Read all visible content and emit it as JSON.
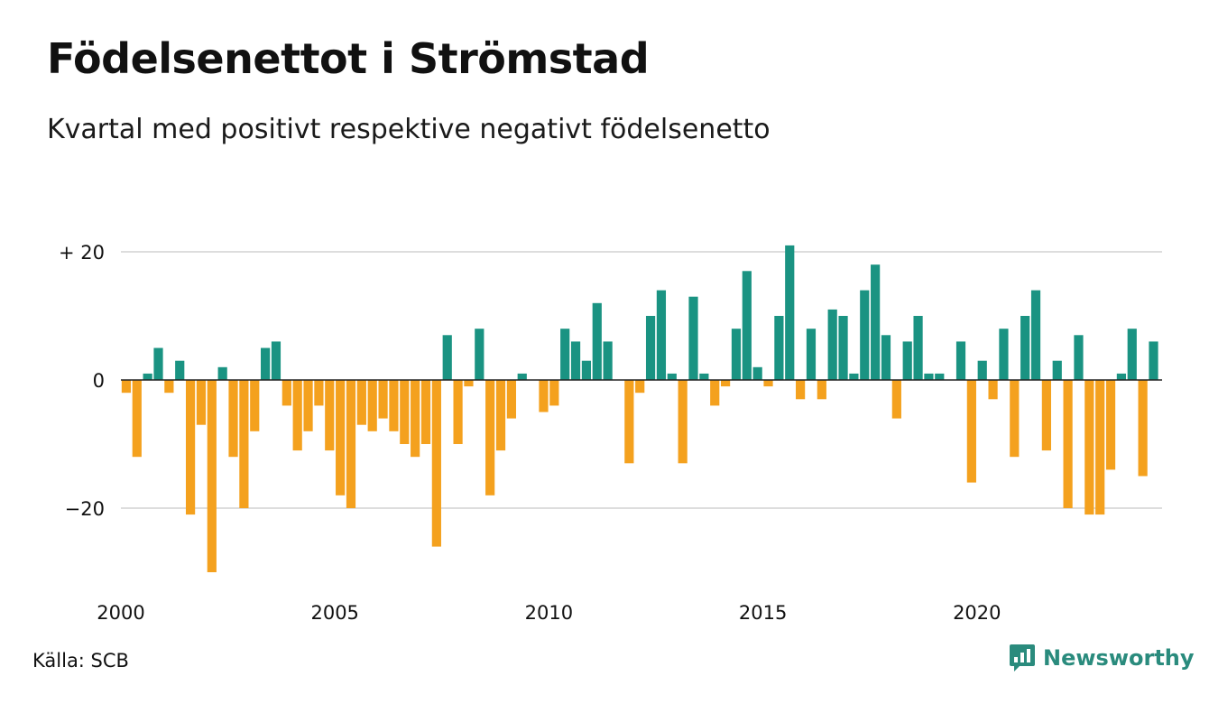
{
  "title": "Födelsenettot i Strömstad",
  "subtitle": "Kvartal med positivt respektive negativt födelsenetto",
  "source": "Källa: SCB",
  "brand": {
    "name": "Newsworthy",
    "icon": "newsworthy-logo-icon",
    "color": "#2a8b7d"
  },
  "colors": {
    "positive": "#1a9382",
    "negative": "#f4a11e",
    "grid": "#dddddd",
    "zero_line": "#222222"
  },
  "chart_data": {
    "type": "bar",
    "x_start": {
      "year": 2000,
      "quarter": 1
    },
    "x_ticks": [
      2000,
      2005,
      2010,
      2015,
      2020
    ],
    "y_ticks": [
      {
        "value": 20,
        "label": "+ 20"
      },
      {
        "value": 0,
        "label": "0"
      },
      {
        "value": -20,
        "label": "−20"
      }
    ],
    "ylim": [
      -32,
      22
    ],
    "grid": true,
    "values": [
      -2,
      -12,
      1,
      5,
      -2,
      3,
      -21,
      -7,
      -30,
      2,
      -12,
      -20,
      -8,
      5,
      6,
      -4,
      -11,
      -8,
      -4,
      -11,
      -18,
      -20,
      -7,
      -8,
      -6,
      -8,
      -10,
      -12,
      -10,
      -26,
      7,
      -10,
      -1,
      8,
      -18,
      -11,
      -6,
      1,
      0,
      -5,
      -4,
      8,
      6,
      3,
      12,
      6,
      0,
      -13,
      -2,
      10,
      14,
      1,
      -13,
      13,
      1,
      -4,
      -1,
      8,
      17,
      2,
      -1,
      10,
      21,
      -3,
      8,
      -3,
      11,
      10,
      1,
      14,
      18,
      7,
      -6,
      6,
      10,
      1,
      1,
      0,
      6,
      -16,
      3,
      -3,
      8,
      -12,
      10,
      14,
      -11,
      3,
      -20,
      7,
      -21,
      -21,
      -14,
      1,
      8,
      -15,
      6
    ]
  }
}
